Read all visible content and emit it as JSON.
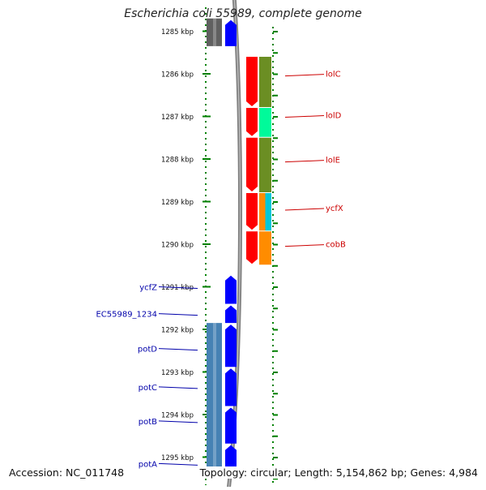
{
  "title": "Escherichia coli 55989, complete genome",
  "footer": {
    "accession": "Accession: NC_011748",
    "summary": "Topology: circular; Length: 5,154,862 bp; Genes: 4,984"
  },
  "ruler": {
    "unit": "kbp",
    "ticks": [
      1285,
      1286,
      1287,
      1288,
      1289,
      1290,
      1291,
      1292,
      1293,
      1294,
      1295
    ]
  },
  "colors": {
    "red_gene": "#ff0000",
    "blue_gene": "#0000ff",
    "steel_blue": "#4682b4",
    "olive": "#6b8e23",
    "spring_green": "#00fa9a",
    "dark_orange": "#ff8c00",
    "cyan": "#00c8d8",
    "grey_band": "#808080",
    "dark_grey_block": "#606060",
    "ruler_green": "#008000",
    "red_label": "#cc0000",
    "blue_label": "#0000aa"
  },
  "right_labels": [
    {
      "text": "lolC",
      "kbp": 1286.05
    },
    {
      "text": "lolD",
      "kbp": 1287.02
    },
    {
      "text": "lolE",
      "kbp": 1288.07
    },
    {
      "text": "ycfX",
      "kbp": 1289.2
    },
    {
      "text": "cobB",
      "kbp": 1290.05
    }
  ],
  "left_labels": [
    {
      "text": "ycfZ",
      "kbp": 1291.0
    },
    {
      "text": "EC55989_1234",
      "kbp": 1291.63
    },
    {
      "text": "potD",
      "kbp": 1292.45
    },
    {
      "text": "potC",
      "kbp": 1293.35
    },
    {
      "text": "potB",
      "kbp": 1294.15
    },
    {
      "text": "potA",
      "kbp": 1295.15
    }
  ],
  "genes_right_strand": [
    {
      "start": 1285.6,
      "end": 1286.8
    },
    {
      "start": 1286.8,
      "end": 1287.5
    },
    {
      "start": 1287.5,
      "end": 1288.8
    },
    {
      "start": 1288.8,
      "end": 1289.7
    },
    {
      "start": 1289.7,
      "end": 1290.5
    }
  ],
  "genes_left_strand": [
    {
      "start": 1290.7,
      "end": 1291.4
    },
    {
      "start": 1291.4,
      "end": 1291.85
    },
    {
      "start": 1291.85,
      "end": 1292.88
    },
    {
      "start": 1292.88,
      "end": 1293.8
    },
    {
      "start": 1293.8,
      "end": 1294.68
    },
    {
      "start": 1294.68,
      "end": 1295.5
    },
    {
      "start": 1284.7,
      "end": 1285.35
    }
  ],
  "feature_bands_right": [
    {
      "start": 1285.6,
      "end": 1286.8,
      "color": "olive"
    },
    {
      "start": 1286.8,
      "end": 1287.5,
      "color": "spring_green"
    },
    {
      "start": 1287.5,
      "end": 1288.8,
      "color": "olive"
    },
    {
      "start": 1288.8,
      "end": 1289.7,
      "color": "dark_orange",
      "split": "cyan"
    },
    {
      "start": 1289.7,
      "end": 1290.5,
      "color": "dark_orange"
    }
  ],
  "feature_bands_left": [
    {
      "start": 1291.85,
      "end": 1295.5,
      "color": "steel_blue"
    },
    {
      "start": 1284.7,
      "end": 1285.35,
      "color": "dark_grey_block"
    }
  ]
}
